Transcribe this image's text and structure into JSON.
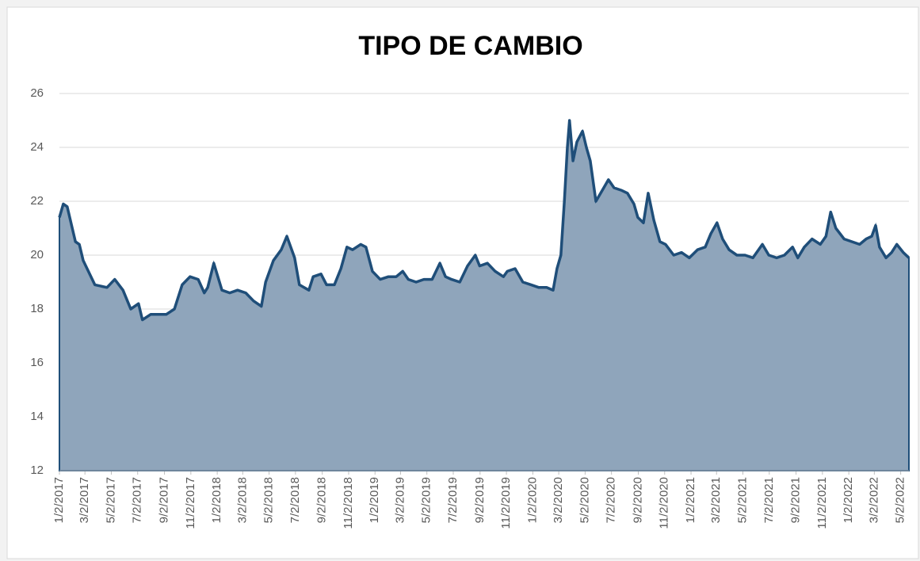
{
  "chart_data": {
    "type": "area",
    "title": "TIPO DE CAMBIO",
    "x": [
      "2017-01-02",
      "2017-01-11",
      "2017-01-20",
      "2017-02-08",
      "2017-02-17",
      "2017-02-26",
      "2017-03-25",
      "2017-04-22",
      "2017-05-10",
      "2017-05-29",
      "2017-06-16",
      "2017-07-04",
      "2017-07-13",
      "2017-08-01",
      "2017-08-19",
      "2017-09-06",
      "2017-09-25",
      "2017-10-13",
      "2017-10-31",
      "2017-11-19",
      "2017-12-03",
      "2017-12-11",
      "2017-12-25",
      "2018-01-13",
      "2018-01-31",
      "2018-02-18",
      "2018-03-09",
      "2018-03-27",
      "2018-04-14",
      "2018-04-24",
      "2018-05-12",
      "2018-05-30",
      "2018-06-12",
      "2018-06-30",
      "2018-07-11",
      "2018-08-02",
      "2018-08-12",
      "2018-08-30",
      "2018-09-12",
      "2018-09-30",
      "2018-10-15",
      "2018-10-29",
      "2018-11-11",
      "2018-11-30",
      "2018-12-12",
      "2018-12-27",
      "2019-01-14",
      "2019-02-02",
      "2019-02-20",
      "2019-03-07",
      "2019-03-20",
      "2019-04-07",
      "2019-04-25",
      "2019-05-14",
      "2019-06-01",
      "2019-06-14",
      "2019-06-28",
      "2019-07-17",
      "2019-08-04",
      "2019-08-22",
      "2019-09-01",
      "2019-09-19",
      "2019-10-07",
      "2019-10-26",
      "2019-11-04",
      "2019-11-22",
      "2019-12-10",
      "2019-12-29",
      "2020-01-16",
      "2020-02-03",
      "2020-02-18",
      "2020-02-27",
      "2020-03-07",
      "2020-03-15",
      "2020-03-22",
      "2020-03-27",
      "2020-04-04",
      "2020-04-13",
      "2020-04-26",
      "2020-05-05",
      "2020-05-14",
      "2020-05-27",
      "2020-06-07",
      "2020-06-25",
      "2020-07-08",
      "2020-07-26",
      "2020-08-08",
      "2020-08-23",
      "2020-09-01",
      "2020-09-14",
      "2020-09-25",
      "2020-10-08",
      "2020-10-22",
      "2020-11-04",
      "2020-11-23",
      "2020-12-11",
      "2020-12-29",
      "2021-01-17",
      "2021-02-04",
      "2021-02-17",
      "2021-03-03",
      "2021-03-16",
      "2021-03-31",
      "2021-04-18",
      "2021-05-07",
      "2021-05-25",
      "2021-06-16",
      "2021-07-01",
      "2021-07-19",
      "2021-08-06",
      "2021-08-25",
      "2021-09-06",
      "2021-09-21",
      "2021-10-09",
      "2021-10-28",
      "2021-11-10",
      "2021-11-21",
      "2021-12-03",
      "2021-12-22",
      "2022-01-09",
      "2022-01-27",
      "2022-02-11",
      "2022-02-24",
      "2022-03-05",
      "2022-03-14",
      "2022-03-29",
      "2022-04-11",
      "2022-04-23",
      "2022-05-08",
      "2022-05-21"
    ],
    "values": [
      21.4,
      21.9,
      21.8,
      20.5,
      20.4,
      19.8,
      18.9,
      18.8,
      19.1,
      18.7,
      18.0,
      18.2,
      17.6,
      17.8,
      17.8,
      17.8,
      18.0,
      18.9,
      19.2,
      19.1,
      18.6,
      18.8,
      19.7,
      18.7,
      18.6,
      18.7,
      18.6,
      18.3,
      18.1,
      19.0,
      19.8,
      20.2,
      20.7,
      19.9,
      18.9,
      18.7,
      19.2,
      19.3,
      18.9,
      18.9,
      19.5,
      20.3,
      20.2,
      20.4,
      20.3,
      19.4,
      19.1,
      19.2,
      19.2,
      19.4,
      19.1,
      19.0,
      19.1,
      19.1,
      19.7,
      19.2,
      19.1,
      19.0,
      19.6,
      20.0,
      19.6,
      19.7,
      19.4,
      19.2,
      19.4,
      19.5,
      19.0,
      18.9,
      18.8,
      18.8,
      18.7,
      19.5,
      20.0,
      22.0,
      24.0,
      25.0,
      23.5,
      24.2,
      24.6,
      24.0,
      23.5,
      22.0,
      22.3,
      22.8,
      22.5,
      22.4,
      22.3,
      21.9,
      21.4,
      21.2,
      22.3,
      21.3,
      20.5,
      20.4,
      20.0,
      20.1,
      19.9,
      20.2,
      20.3,
      20.8,
      21.2,
      20.6,
      20.2,
      20.0,
      20.0,
      19.9,
      20.4,
      20.0,
      19.9,
      20.0,
      20.3,
      19.9,
      20.3,
      20.6,
      20.4,
      20.7,
      21.6,
      21.0,
      20.6,
      20.5,
      20.4,
      20.6,
      20.7,
      21.1,
      20.3,
      19.9,
      20.1,
      20.4,
      20.1,
      19.9
    ],
    "color": "#1f4e79",
    "fill": "#8fa5bb",
    "xlim": [
      "2017-01-02",
      "2022-05-21"
    ],
    "xticks": [
      {
        "value": "2017-01-02",
        "label": "1/2/2017"
      },
      {
        "value": "2017-03-02",
        "label": "3/2/2017"
      },
      {
        "value": "2017-05-02",
        "label": "5/2/2017"
      },
      {
        "value": "2017-07-02",
        "label": "7/2/2017"
      },
      {
        "value": "2017-09-02",
        "label": "9/2/2017"
      },
      {
        "value": "2017-11-02",
        "label": "11/2/2017"
      },
      {
        "value": "2018-01-02",
        "label": "1/2/2018"
      },
      {
        "value": "2018-03-02",
        "label": "3/2/2018"
      },
      {
        "value": "2018-05-02",
        "label": "5/2/2018"
      },
      {
        "value": "2018-07-02",
        "label": "7/2/2018"
      },
      {
        "value": "2018-09-02",
        "label": "9/2/2018"
      },
      {
        "value": "2018-11-02",
        "label": "11/2/2018"
      },
      {
        "value": "2019-01-02",
        "label": "1/2/2019"
      },
      {
        "value": "2019-03-02",
        "label": "3/2/2019"
      },
      {
        "value": "2019-05-02",
        "label": "5/2/2019"
      },
      {
        "value": "2019-07-02",
        "label": "7/2/2019"
      },
      {
        "value": "2019-09-02",
        "label": "9/2/2019"
      },
      {
        "value": "2019-11-02",
        "label": "11/2/2019"
      },
      {
        "value": "2020-01-02",
        "label": "1/2/2020"
      },
      {
        "value": "2020-03-02",
        "label": "3/2/2020"
      },
      {
        "value": "2020-05-02",
        "label": "5/2/2020"
      },
      {
        "value": "2020-07-02",
        "label": "7/2/2020"
      },
      {
        "value": "2020-09-02",
        "label": "9/2/2020"
      },
      {
        "value": "2020-11-02",
        "label": "11/2/2020"
      },
      {
        "value": "2021-01-02",
        "label": "1/2/2021"
      },
      {
        "value": "2021-03-02",
        "label": "3/2/2021"
      },
      {
        "value": "2021-05-02",
        "label": "5/2/2021"
      },
      {
        "value": "2021-07-02",
        "label": "7/2/2021"
      },
      {
        "value": "2021-09-02",
        "label": "9/2/2021"
      },
      {
        "value": "2021-11-02",
        "label": "11/2/2021"
      },
      {
        "value": "2022-01-02",
        "label": "1/2/2022"
      },
      {
        "value": "2022-03-02",
        "label": "3/2/2022"
      },
      {
        "value": "2022-05-02",
        "label": "5/2/2022"
      }
    ],
    "ylim": [
      12,
      26
    ],
    "yticks": [
      12,
      14,
      16,
      18,
      20,
      22,
      24,
      26
    ],
    "grid": true
  }
}
